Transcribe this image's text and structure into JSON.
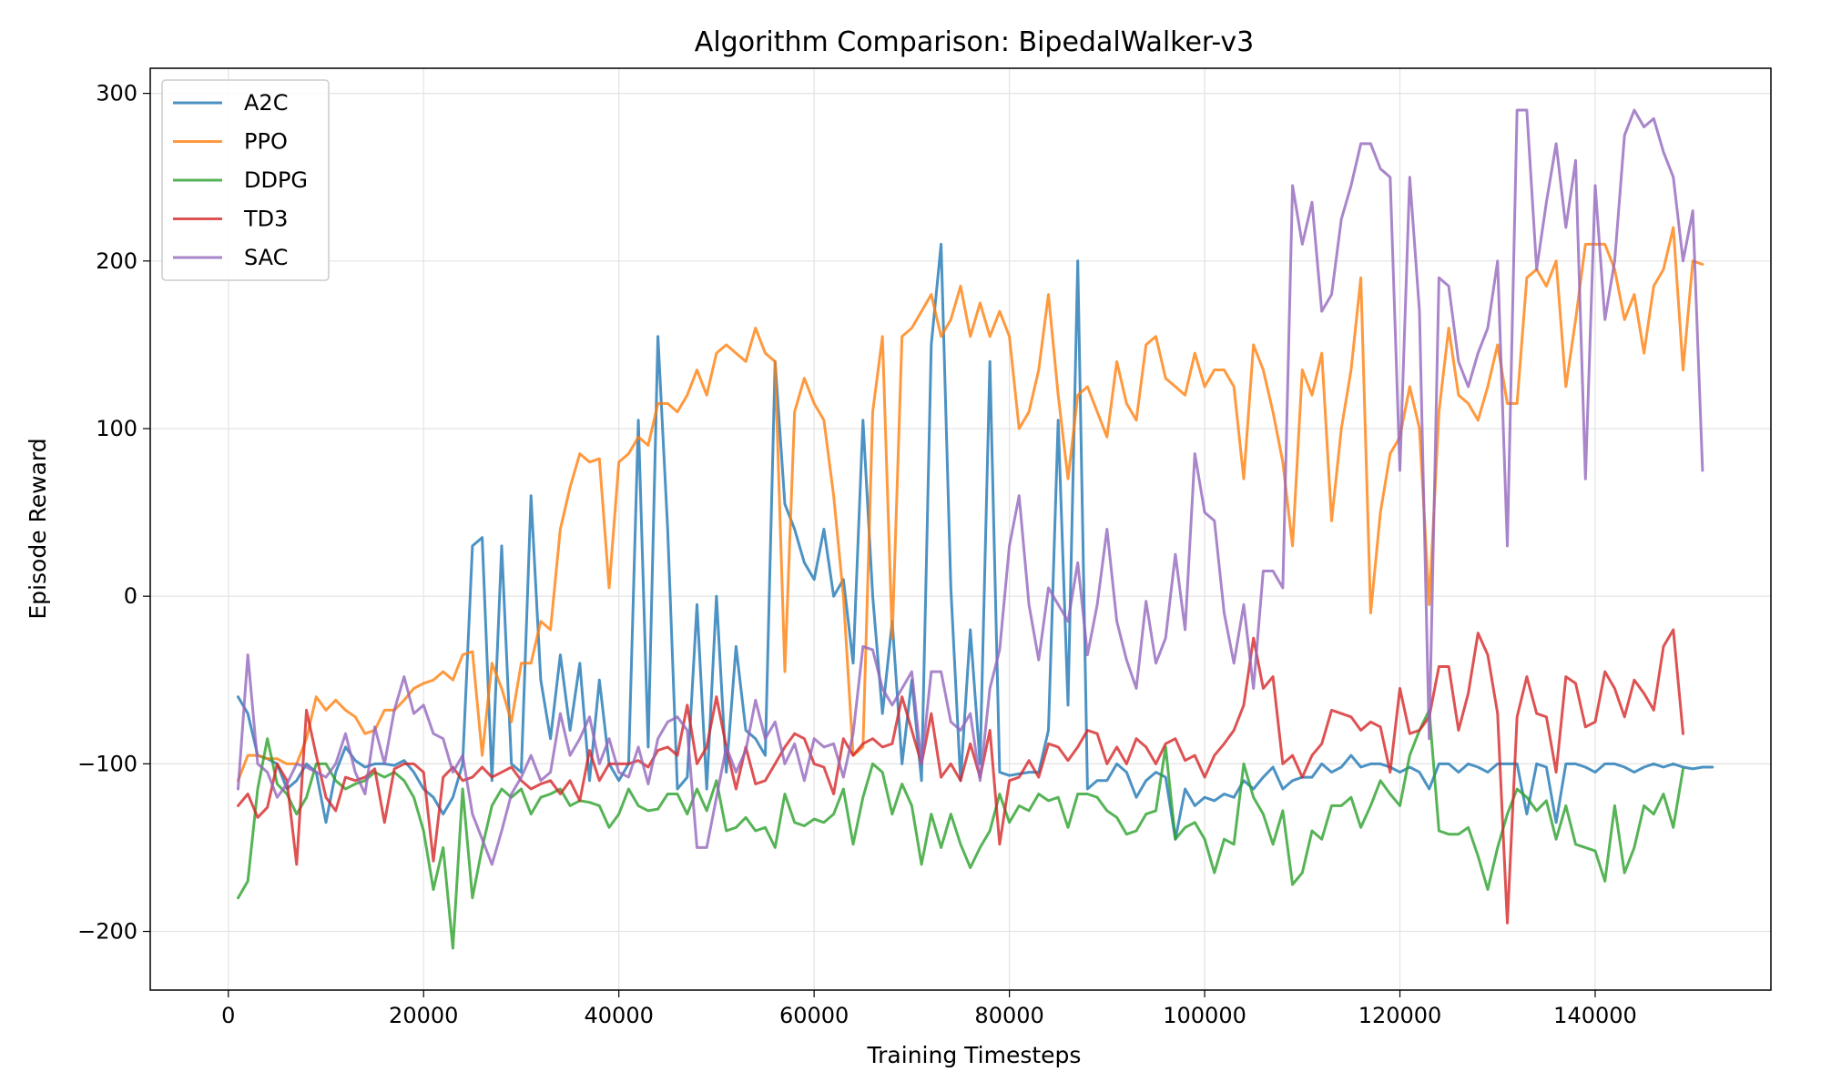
{
  "chart_data": {
    "type": "line",
    "title": "Algorithm Comparison: BipedalWalker-v3",
    "xlabel": "Training Timesteps",
    "ylabel": "Episode Reward",
    "xlim": [
      -8000,
      158000
    ],
    "ylim": [
      -235,
      315
    ],
    "xticks": [
      0,
      20000,
      40000,
      60000,
      80000,
      100000,
      120000,
      140000
    ],
    "xtick_labels": [
      "0",
      "20000",
      "40000",
      "60000",
      "80000",
      "100000",
      "120000",
      "140000"
    ],
    "yticks": [
      -200,
      -100,
      0,
      100,
      200,
      300
    ],
    "ytick_labels": [
      "−200",
      "−100",
      "0",
      "100",
      "200",
      "300"
    ],
    "grid": true,
    "legend_position": "upper left",
    "x_start": 1000,
    "x_step": 1000,
    "series": [
      {
        "name": "A2C",
        "color": "#1f77b4",
        "values": [
          -60,
          -70,
          -95,
          -97,
          -100,
          -115,
          -110,
          -100,
          -105,
          -135,
          -105,
          -90,
          -98,
          -102,
          -100,
          -100,
          -101,
          -98,
          -105,
          -115,
          -120,
          -130,
          -120,
          -100,
          30,
          35,
          -110,
          30,
          -100,
          -105,
          60,
          -50,
          -85,
          -35,
          -80,
          -40,
          -110,
          -50,
          -100,
          -110,
          -100,
          105,
          -90,
          155,
          40,
          -115,
          -108,
          -5,
          -115,
          0,
          -105,
          -30,
          -80,
          -85,
          -95,
          140,
          55,
          40,
          20,
          10,
          40,
          0,
          10,
          -40,
          105,
          0,
          -70,
          -15,
          -100,
          -50,
          -110,
          150,
          210,
          5,
          -110,
          -20,
          -100,
          140,
          -105,
          -107,
          -106,
          -105,
          -105,
          -80,
          105,
          -65,
          200,
          -115,
          -110,
          -110,
          -100,
          -105,
          -120,
          -110,
          -105,
          -108,
          -145,
          -115,
          -125,
          -120,
          -122,
          -118,
          -120,
          -110,
          -115,
          -108,
          -102,
          -115,
          -110,
          -108,
          -108,
          -100,
          -105,
          -102,
          -95,
          -102,
          -100,
          -100,
          -102,
          -105,
          -102,
          -105,
          -115,
          -100,
          -100,
          -105,
          -100,
          -102,
          -105,
          -100,
          -100,
          -100,
          -130,
          -100,
          -102,
          -135,
          -100,
          -100,
          -102,
          -105,
          -100,
          -100,
          -102,
          -105,
          -102,
          -100,
          -102,
          -100,
          -102,
          -103,
          -102,
          -102
        ]
      },
      {
        "name": "PPO",
        "color": "#ff7f0e",
        "values": [
          -110,
          -95,
          -95,
          -97,
          -97,
          -100,
          -100,
          -85,
          -60,
          -68,
          -62,
          -68,
          -72,
          -82,
          -80,
          -68,
          -68,
          -62,
          -55,
          -52,
          -50,
          -45,
          -50,
          -35,
          -33,
          -95,
          -40,
          -55,
          -75,
          -40,
          -40,
          -15,
          -20,
          40,
          65,
          85,
          80,
          82,
          5,
          80,
          85,
          95,
          90,
          115,
          115,
          110,
          120,
          135,
          120,
          145,
          150,
          145,
          140,
          160,
          145,
          140,
          -45,
          110,
          130,
          115,
          105,
          60,
          0,
          -95,
          -90,
          110,
          155,
          -25,
          155,
          160,
          170,
          180,
          155,
          165,
          185,
          155,
          175,
          155,
          170,
          155,
          100,
          110,
          135,
          180,
          120,
          70,
          120,
          125,
          110,
          95,
          140,
          115,
          105,
          150,
          155,
          130,
          125,
          120,
          145,
          125,
          135,
          135,
          125,
          70,
          150,
          135,
          110,
          80,
          30,
          135,
          120,
          145,
          45,
          100,
          135,
          190,
          -10,
          50,
          85,
          95,
          125,
          100,
          -5,
          110,
          160,
          120,
          115,
          105,
          125,
          150,
          115,
          115,
          190,
          195,
          185,
          200,
          125,
          165,
          210,
          210,
          210,
          195,
          165,
          180,
          145,
          185,
          195,
          220,
          135,
          200,
          198
        ]
      },
      {
        "name": "DDPG",
        "color": "#2ca02c",
        "values": [
          -180,
          -170,
          -115,
          -85,
          -112,
          -118,
          -130,
          -120,
          -100,
          -100,
          -110,
          -115,
          -112,
          -110,
          -105,
          -108,
          -105,
          -110,
          -120,
          -140,
          -175,
          -150,
          -210,
          -115,
          -180,
          -150,
          -125,
          -115,
          -120,
          -115,
          -130,
          -120,
          -118,
          -115,
          -125,
          -122,
          -123,
          -125,
          -138,
          -130,
          -115,
          -125,
          -128,
          -127,
          -118,
          -118,
          -130,
          -115,
          -128,
          -110,
          -140,
          -138,
          -132,
          -140,
          -138,
          -150,
          -118,
          -135,
          -137,
          -133,
          -135,
          -130,
          -115,
          -148,
          -120,
          -100,
          -105,
          -130,
          -112,
          -125,
          -160,
          -130,
          -150,
          -130,
          -148,
          -162,
          -150,
          -140,
          -118,
          -135,
          -125,
          -128,
          -118,
          -122,
          -120,
          -138,
          -118,
          -118,
          -120,
          -128,
          -132,
          -142,
          -140,
          -130,
          -128,
          -90,
          -145,
          -138,
          -135,
          -145,
          -165,
          -145,
          -148,
          -100,
          -120,
          -130,
          -148,
          -128,
          -172,
          -165,
          -140,
          -145,
          -125,
          -125,
          -120,
          -138,
          -125,
          -110,
          -118,
          -125,
          -95,
          -80,
          -68,
          -140,
          -142,
          -142,
          -138,
          -155,
          -175,
          -150,
          -130,
          -115,
          -120,
          -128,
          -122,
          -145,
          -125,
          -148,
          -150,
          -152,
          -170,
          -125,
          -165,
          -150,
          -125,
          -130,
          -118,
          -138,
          -103
        ]
      },
      {
        "name": "TD3",
        "color": "#d62728",
        "values": [
          -125,
          -118,
          -132,
          -126,
          -100,
          -110,
          -160,
          -68,
          -95,
          -120,
          -128,
          -108,
          -110,
          -108,
          -103,
          -135,
          -103,
          -100,
          -100,
          -105,
          -158,
          -108,
          -102,
          -110,
          -108,
          -102,
          -108,
          -105,
          -102,
          -110,
          -115,
          -112,
          -110,
          -118,
          -110,
          -122,
          -92,
          -110,
          -100,
          -100,
          -100,
          -98,
          -102,
          -92,
          -90,
          -95,
          -65,
          -100,
          -90,
          -60,
          -90,
          -115,
          -90,
          -112,
          -110,
          -100,
          -90,
          -82,
          -85,
          -100,
          -102,
          -118,
          -85,
          -95,
          -88,
          -85,
          -90,
          -88,
          -60,
          -80,
          -100,
          -70,
          -108,
          -100,
          -110,
          -88,
          -108,
          -80,
          -148,
          -110,
          -108,
          -98,
          -108,
          -88,
          -90,
          -98,
          -90,
          -80,
          -82,
          -100,
          -90,
          -100,
          -85,
          -90,
          -100,
          -88,
          -85,
          -98,
          -95,
          -108,
          -95,
          -88,
          -80,
          -65,
          -25,
          -55,
          -48,
          -100,
          -95,
          -108,
          -95,
          -88,
          -68,
          -70,
          -72,
          -80,
          -75,
          -78,
          -105,
          -55,
          -82,
          -80,
          -72,
          -42,
          -42,
          -80,
          -58,
          -22,
          -35,
          -70,
          -195,
          -72,
          -48,
          -70,
          -72,
          -105,
          -48,
          -52,
          -78,
          -75,
          -45,
          -55,
          -72,
          -50,
          -58,
          -68,
          -30,
          -20,
          -82
        ]
      },
      {
        "name": "SAC",
        "color": "#9467bd",
        "values": [
          -115,
          -35,
          -100,
          -105,
          -120,
          -112,
          -100,
          -102,
          -105,
          -108,
          -100,
          -82,
          -105,
          -118,
          -78,
          -100,
          -68,
          -48,
          -70,
          -65,
          -82,
          -85,
          -105,
          -95,
          -130,
          -145,
          -160,
          -140,
          -118,
          -108,
          -95,
          -110,
          -105,
          -70,
          -95,
          -85,
          -72,
          -100,
          -85,
          -105,
          -108,
          -90,
          -112,
          -85,
          -75,
          -72,
          -80,
          -150,
          -150,
          -120,
          -90,
          -105,
          -92,
          -62,
          -85,
          -75,
          -100,
          -88,
          -110,
          -85,
          -90,
          -88,
          -108,
          -82,
          -30,
          -32,
          -55,
          -65,
          -55,
          -45,
          -100,
          -45,
          -45,
          -75,
          -80,
          -70,
          -110,
          -55,
          -32,
          30,
          60,
          -5,
          -38,
          5,
          -5,
          -15,
          20,
          -35,
          -5,
          40,
          -15,
          -38,
          -55,
          -3,
          -40,
          -25,
          25,
          -20,
          85,
          50,
          45,
          -10,
          -40,
          -5,
          -55,
          15,
          15,
          5,
          245,
          210,
          235,
          170,
          180,
          225,
          245,
          270,
          270,
          255,
          250,
          75,
          250,
          170,
          -85,
          190,
          185,
          140,
          125,
          145,
          160,
          200,
          30,
          290,
          290,
          195,
          235,
          270,
          220,
          260,
          70,
          245,
          165,
          200,
          275,
          290,
          280,
          285,
          265,
          250,
          200,
          230,
          75
        ]
      }
    ]
  }
}
